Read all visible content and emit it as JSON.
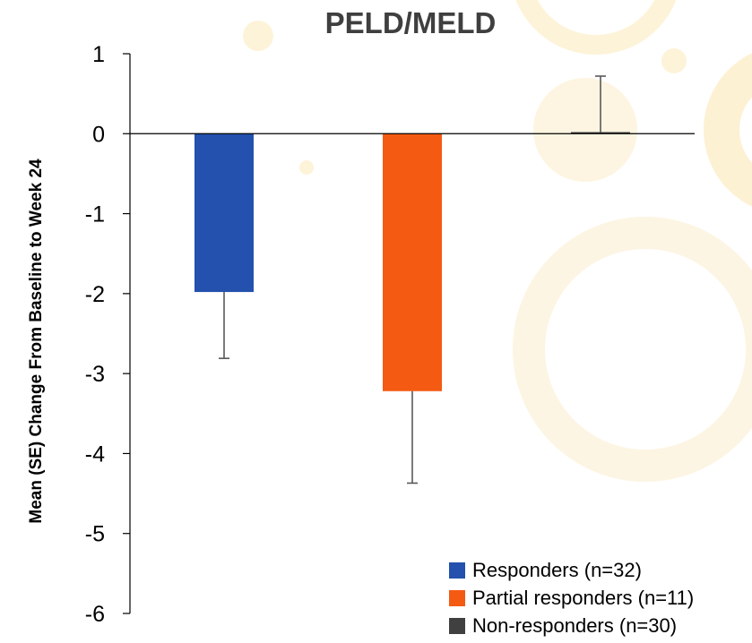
{
  "chart_data": {
    "type": "bar",
    "title": "PELD/MELD",
    "xlabel": "",
    "ylabel": "Mean (SE) Change From Baseline to Week 24",
    "ylim": [
      -6,
      1
    ],
    "yticks": [
      1,
      0,
      -1,
      -2,
      -3,
      -4,
      -5,
      -6
    ],
    "error_bars": true,
    "legend_position": "bottom-right",
    "series": [
      {
        "name": "Responders (n=32)",
        "value": -1.98,
        "error": 0.83,
        "color": "#2351ad"
      },
      {
        "name": "Partial responders (n=11)",
        "value": -3.22,
        "error": 1.15,
        "color": "#f55a13"
      },
      {
        "name": "Non-responders (n=30)",
        "value": 0.02,
        "error": 0.7,
        "color": "#404040"
      }
    ]
  },
  "colors": {
    "axis": "#000000",
    "title": "#3f3f3f",
    "background_decoration": "#fdf3d8"
  }
}
